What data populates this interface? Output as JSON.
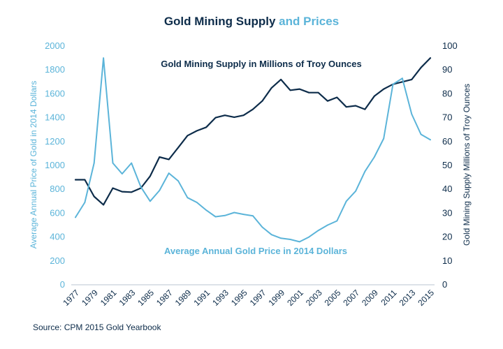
{
  "chart_data": {
    "type": "line",
    "title": "Gold Mining Supply and Prices",
    "title_parts": [
      "Gold Mining Supply ",
      "and Prices"
    ],
    "x": [
      1977,
      1978,
      1979,
      1980,
      1981,
      1982,
      1983,
      1984,
      1985,
      1986,
      1987,
      1988,
      1989,
      1990,
      1991,
      1992,
      1993,
      1994,
      1995,
      1996,
      1997,
      1998,
      1999,
      2000,
      2001,
      2002,
      2003,
      2004,
      2005,
      2006,
      2007,
      2008,
      2009,
      2010,
      2011,
      2012,
      2013,
      2014,
      2015
    ],
    "x_tick_labels": [
      "1977",
      "1979",
      "1981",
      "1983",
      "1985",
      "1987",
      "1989",
      "1991",
      "1993",
      "1995",
      "1997",
      "1999",
      "2001",
      "2003",
      "2005",
      "2007",
      "2009",
      "2011",
      "2013",
      "2015"
    ],
    "x_tick_values": [
      1977,
      1979,
      1981,
      1983,
      1985,
      1987,
      1989,
      1991,
      1993,
      1995,
      1997,
      1999,
      2001,
      2003,
      2005,
      2007,
      2009,
      2011,
      2013,
      2015
    ],
    "y_left": {
      "label": "Average Annual Price of Gold in 2014 Dollars",
      "lim": [
        0,
        2000
      ],
      "ticks": [
        "0",
        "200",
        "400",
        "600",
        "800",
        "1000",
        "1200",
        "1400",
        "1600",
        "1800",
        "2000"
      ]
    },
    "y_right": {
      "label": "Gold Mining Supply Millions of Troy Ounces",
      "lim": [
        0,
        100
      ],
      "ticks": [
        "0",
        "10",
        "20",
        "30",
        "40",
        "50",
        "60",
        "70",
        "80",
        "90",
        "100"
      ]
    },
    "series": [
      {
        "name": "Gold Mining Supply in Millions of Troy Ounces",
        "axis": "right",
        "color": "#0d2c4a",
        "values": [
          44,
          44,
          37,
          33.5,
          40.5,
          39,
          38.8,
          40.5,
          45.5,
          53.5,
          52.5,
          57.5,
          62.5,
          64.5,
          66,
          70,
          71,
          70.2,
          71,
          73.5,
          77,
          82.5,
          86,
          81.5,
          82,
          80.5,
          80.5,
          77,
          78.5,
          74.5,
          75,
          73.5,
          79,
          82,
          84,
          85,
          86,
          91,
          95
        ]
      },
      {
        "name": "Average Annual Gold Price in 2014 Dollars",
        "axis": "left",
        "color": "#5bb4d9",
        "values": [
          565,
          690,
          1020,
          1900,
          1020,
          930,
          1020,
          820,
          700,
          790,
          935,
          870,
          730,
          690,
          625,
          570,
          580,
          605,
          590,
          578,
          483,
          420,
          390,
          380,
          360,
          400,
          455,
          500,
          535,
          700,
          785,
          950,
          1070,
          1225,
          1680,
          1730,
          1430,
          1260,
          1215
        ]
      }
    ],
    "annotations": [
      "Gold Mining Supply in Millions of Troy Ounces",
      "Average Annual Gold Price in 2014 Dollars"
    ],
    "source": "Source: CPM 2015 Gold Yearbook",
    "grid": false,
    "legend": "none"
  }
}
